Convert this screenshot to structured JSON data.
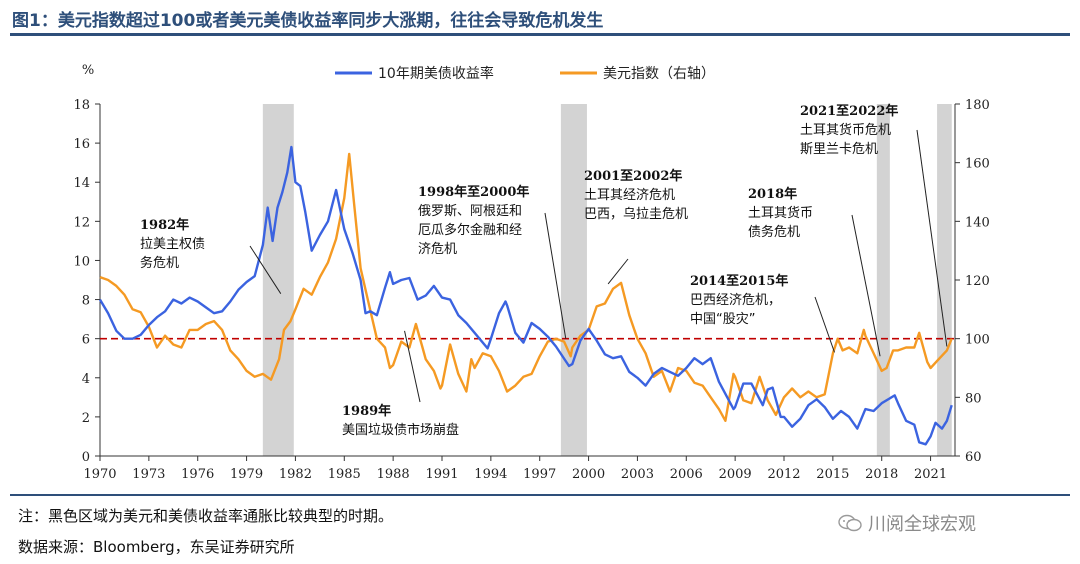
{
  "figure": {
    "title": "图1：美元指数超过100或者美元美债收益率同步大涨期，往往会导致危机发生",
    "note": "注：黑色区域为美元和美债收益率通胀比较典型的时期。",
    "source": "数据来源：Bloomberg，东吴证券研究所",
    "watermark": "川阅全球宏观"
  },
  "colors": {
    "yield": "#3b63e0",
    "dxy": "#f59a23",
    "threshold": "#c00000",
    "shade": "#d3d3d3",
    "title": "#2e4f7a"
  },
  "chart_data": {
    "type": "line",
    "x_range": [
      1970,
      2022.5
    ],
    "x_ticks": [
      1970,
      1973,
      1976,
      1979,
      1982,
      1985,
      1988,
      1991,
      1994,
      1997,
      2000,
      2003,
      2006,
      2009,
      2012,
      2015,
      2018,
      2021
    ],
    "left_axis": {
      "label": "%",
      "range": [
        0,
        18
      ],
      "ticks": [
        0,
        2,
        4,
        6,
        8,
        10,
        12,
        14,
        16,
        18
      ]
    },
    "right_axis": {
      "range": [
        60,
        180
      ],
      "ticks": [
        60,
        80,
        100,
        120,
        140,
        160,
        180
      ]
    },
    "threshold": {
      "axis": "right",
      "value": 100
    },
    "shaded_periods": [
      [
        1980.0,
        1981.9
      ],
      [
        1998.3,
        1999.9
      ],
      [
        2017.7,
        2018.5
      ],
      [
        2021.4,
        2022.3
      ]
    ],
    "series": [
      {
        "name": "10年期美债收益率",
        "axis": "left",
        "points": [
          [
            1970,
            8.0
          ],
          [
            1970.5,
            7.3
          ],
          [
            1971,
            6.4
          ],
          [
            1971.5,
            6.0
          ],
          [
            1972,
            6.0
          ],
          [
            1972.5,
            6.2
          ],
          [
            1973,
            6.7
          ],
          [
            1973.5,
            7.1
          ],
          [
            1974,
            7.4
          ],
          [
            1974.5,
            8.0
          ],
          [
            1975,
            7.8
          ],
          [
            1975.5,
            8.1
          ],
          [
            1976,
            7.9
          ],
          [
            1976.5,
            7.6
          ],
          [
            1977,
            7.3
          ],
          [
            1977.5,
            7.4
          ],
          [
            1978,
            7.9
          ],
          [
            1978.5,
            8.5
          ],
          [
            1979,
            8.9
          ],
          [
            1979.5,
            9.2
          ],
          [
            1980,
            10.8
          ],
          [
            1980.3,
            12.7
          ],
          [
            1980.6,
            11.0
          ],
          [
            1980.9,
            12.7
          ],
          [
            1981.2,
            13.5
          ],
          [
            1981.5,
            14.5
          ],
          [
            1981.75,
            15.8
          ],
          [
            1982,
            14.0
          ],
          [
            1982.3,
            13.8
          ],
          [
            1982.6,
            12.5
          ],
          [
            1983,
            10.5
          ],
          [
            1983.5,
            11.3
          ],
          [
            1984,
            12.0
          ],
          [
            1984.5,
            13.6
          ],
          [
            1985,
            11.6
          ],
          [
            1985.5,
            10.4
          ],
          [
            1986,
            9.0
          ],
          [
            1986.3,
            7.3
          ],
          [
            1986.6,
            7.4
          ],
          [
            1987,
            7.2
          ],
          [
            1987.5,
            8.6
          ],
          [
            1987.8,
            9.4
          ],
          [
            1988,
            8.8
          ],
          [
            1988.5,
            9.0
          ],
          [
            1989,
            9.1
          ],
          [
            1989.5,
            8.0
          ],
          [
            1990,
            8.2
          ],
          [
            1990.5,
            8.7
          ],
          [
            1991,
            8.1
          ],
          [
            1991.5,
            8.0
          ],
          [
            1992,
            7.2
          ],
          [
            1992.5,
            6.8
          ],
          [
            1993,
            6.3
          ],
          [
            1993.8,
            5.5
          ],
          [
            1994,
            6.0
          ],
          [
            1994.5,
            7.3
          ],
          [
            1994.9,
            7.9
          ],
          [
            1995,
            7.7
          ],
          [
            1995.5,
            6.3
          ],
          [
            1996,
            5.8
          ],
          [
            1996.5,
            6.8
          ],
          [
            1997,
            6.5
          ],
          [
            1997.5,
            6.1
          ],
          [
            1998,
            5.6
          ],
          [
            1998.8,
            4.6
          ],
          [
            1999,
            4.7
          ],
          [
            1999.5,
            5.9
          ],
          [
            2000,
            6.5
          ],
          [
            2000.5,
            5.9
          ],
          [
            2001,
            5.2
          ],
          [
            2001.5,
            5.0
          ],
          [
            2002,
            5.1
          ],
          [
            2002.5,
            4.3
          ],
          [
            2003,
            4.0
          ],
          [
            2003.5,
            3.6
          ],
          [
            2004,
            4.2
          ],
          [
            2004.5,
            4.5
          ],
          [
            2005,
            4.3
          ],
          [
            2005.5,
            4.1
          ],
          [
            2006,
            4.5
          ],
          [
            2006.5,
            5.0
          ],
          [
            2007,
            4.7
          ],
          [
            2007.5,
            5.0
          ],
          [
            2008,
            3.8
          ],
          [
            2008.9,
            2.4
          ],
          [
            2009,
            2.5
          ],
          [
            2009.5,
            3.7
          ],
          [
            2010,
            3.7
          ],
          [
            2010.7,
            2.6
          ],
          [
            2011,
            3.4
          ],
          [
            2011.3,
            3.5
          ],
          [
            2011.8,
            2.0
          ],
          [
            2012,
            2.0
          ],
          [
            2012.5,
            1.5
          ],
          [
            2013,
            1.9
          ],
          [
            2013.5,
            2.6
          ],
          [
            2014,
            2.9
          ],
          [
            2014.5,
            2.5
          ],
          [
            2015,
            1.9
          ],
          [
            2015.5,
            2.3
          ],
          [
            2016,
            2.0
          ],
          [
            2016.5,
            1.4
          ],
          [
            2017,
            2.4
          ],
          [
            2017.5,
            2.3
          ],
          [
            2018,
            2.7
          ],
          [
            2018.8,
            3.1
          ],
          [
            2019,
            2.7
          ],
          [
            2019.5,
            1.8
          ],
          [
            2020,
            1.6
          ],
          [
            2020.3,
            0.7
          ],
          [
            2020.7,
            0.6
          ],
          [
            2021,
            1.0
          ],
          [
            2021.3,
            1.7
          ],
          [
            2021.7,
            1.4
          ],
          [
            2022,
            1.8
          ],
          [
            2022.3,
            2.6
          ]
        ]
      },
      {
        "name": "美元指数（右轴）",
        "axis": "right",
        "points": [
          [
            1970,
            121
          ],
          [
            1970.5,
            120
          ],
          [
            1971,
            118
          ],
          [
            1971.5,
            115
          ],
          [
            1972,
            110
          ],
          [
            1972.5,
            109
          ],
          [
            1973,
            104
          ],
          [
            1973.5,
            97
          ],
          [
            1974,
            101
          ],
          [
            1974.5,
            98
          ],
          [
            1975,
            97
          ],
          [
            1975.5,
            103
          ],
          [
            1976,
            103
          ],
          [
            1976.5,
            105
          ],
          [
            1977,
            106
          ],
          [
            1977.5,
            103
          ],
          [
            1978,
            96
          ],
          [
            1978.5,
            93
          ],
          [
            1979,
            89
          ],
          [
            1979.5,
            87
          ],
          [
            1980,
            88
          ],
          [
            1980.5,
            86
          ],
          [
            1981,
            93
          ],
          [
            1981.3,
            103
          ],
          [
            1981.7,
            106
          ],
          [
            1982,
            110
          ],
          [
            1982.5,
            117
          ],
          [
            1983,
            115
          ],
          [
            1983.5,
            121
          ],
          [
            1984,
            126
          ],
          [
            1984.5,
            134
          ],
          [
            1985,
            148
          ],
          [
            1985.3,
            163
          ],
          [
            1985.6,
            146
          ],
          [
            1986,
            124
          ],
          [
            1986.5,
            112
          ],
          [
            1987,
            100
          ],
          [
            1987.5,
            97
          ],
          [
            1987.8,
            90
          ],
          [
            1988,
            91
          ],
          [
            1988.5,
            99
          ],
          [
            1989,
            97
          ],
          [
            1989.4,
            105
          ],
          [
            1989.8,
            97
          ],
          [
            1990,
            93
          ],
          [
            1990.5,
            89
          ],
          [
            1990.9,
            83
          ],
          [
            1991,
            84
          ],
          [
            1991.5,
            98
          ],
          [
            1992,
            88
          ],
          [
            1992.5,
            82
          ],
          [
            1992.8,
            93
          ],
          [
            1993,
            90
          ],
          [
            1993.5,
            95
          ],
          [
            1994,
            94
          ],
          [
            1994.5,
            89
          ],
          [
            1995,
            82
          ],
          [
            1995.5,
            84
          ],
          [
            1996,
            87
          ],
          [
            1996.5,
            88
          ],
          [
            1997,
            94
          ],
          [
            1997.5,
            99
          ],
          [
            1998,
            100
          ],
          [
            1998.5,
            99
          ],
          [
            1998.9,
            94
          ],
          [
            1999,
            97
          ],
          [
            1999.5,
            101
          ],
          [
            2000,
            103
          ],
          [
            2000.5,
            111
          ],
          [
            2001,
            112
          ],
          [
            2001.5,
            117
          ],
          [
            2002,
            119
          ],
          [
            2002.5,
            108
          ],
          [
            2003,
            100
          ],
          [
            2003.5,
            95
          ],
          [
            2004,
            87
          ],
          [
            2004.5,
            89
          ],
          [
            2005,
            82
          ],
          [
            2005.5,
            90
          ],
          [
            2006,
            89
          ],
          [
            2006.5,
            85
          ],
          [
            2007,
            84
          ],
          [
            2007.5,
            80
          ],
          [
            2008,
            76
          ],
          [
            2008.4,
            72
          ],
          [
            2008.9,
            88
          ],
          [
            2009,
            87
          ],
          [
            2009.5,
            79
          ],
          [
            2010,
            78
          ],
          [
            2010.5,
            87
          ],
          [
            2011,
            79
          ],
          [
            2011.5,
            74
          ],
          [
            2012,
            80
          ],
          [
            2012.5,
            83
          ],
          [
            2013,
            80
          ],
          [
            2013.5,
            82
          ],
          [
            2014,
            80
          ],
          [
            2014.5,
            81
          ],
          [
            2015,
            95
          ],
          [
            2015.3,
            100
          ],
          [
            2015.6,
            96
          ],
          [
            2016,
            97
          ],
          [
            2016.5,
            95
          ],
          [
            2016.9,
            103
          ],
          [
            2017,
            101
          ],
          [
            2017.5,
            95
          ],
          [
            2018,
            89
          ],
          [
            2018.3,
            90
          ],
          [
            2018.7,
            96
          ],
          [
            2019,
            96
          ],
          [
            2019.5,
            97
          ],
          [
            2020,
            97
          ],
          [
            2020.3,
            102
          ],
          [
            2020.8,
            92
          ],
          [
            2021,
            90
          ],
          [
            2021.5,
            93
          ],
          [
            2022,
            96
          ],
          [
            2022.3,
            100
          ]
        ]
      }
    ],
    "legend": [
      "10年期美债收益率",
      "美元指数（右轴）"
    ],
    "legend_position": "top-center",
    "annotations": [
      {
        "title": "1982年",
        "lines": [
          "拉美主权债",
          "务危机"
        ],
        "year": 1981.1,
        "value": 8.3,
        "axis": "left"
      },
      {
        "title": "1989年",
        "lines": [
          "美国垃圾债市场崩盘"
        ],
        "year": 1988.7,
        "value": 6.4,
        "axis": "left"
      },
      {
        "title": "1998年至2000年",
        "lines": [
          "俄罗斯、阿根廷和",
          "厄瓜多尔金融和经",
          "济危机"
        ],
        "year": 1998.6,
        "value": 6.0,
        "axis": "left"
      },
      {
        "title": "2001至2002年",
        "lines": [
          "土耳其经济危机",
          "巴西，乌拉圭危机"
        ],
        "year": 2001.2,
        "value": 8.8,
        "axis": "left"
      },
      {
        "title": "2014至2015年",
        "lines": [
          "巴西经济危机，",
          "中国“股灾”"
        ],
        "year": 2015.1,
        "value": 5.3,
        "axis": "left"
      },
      {
        "title": "2018年",
        "lines": [
          "土耳其货币",
          "债务危机"
        ],
        "year": 2017.9,
        "value": 5.1,
        "axis": "left"
      },
      {
        "title": "2021至2022年",
        "lines": [
          "土耳其货币危机",
          "斯里兰卡危机"
        ],
        "year": 2022.0,
        "value": 5.6,
        "axis": "left"
      }
    ]
  }
}
